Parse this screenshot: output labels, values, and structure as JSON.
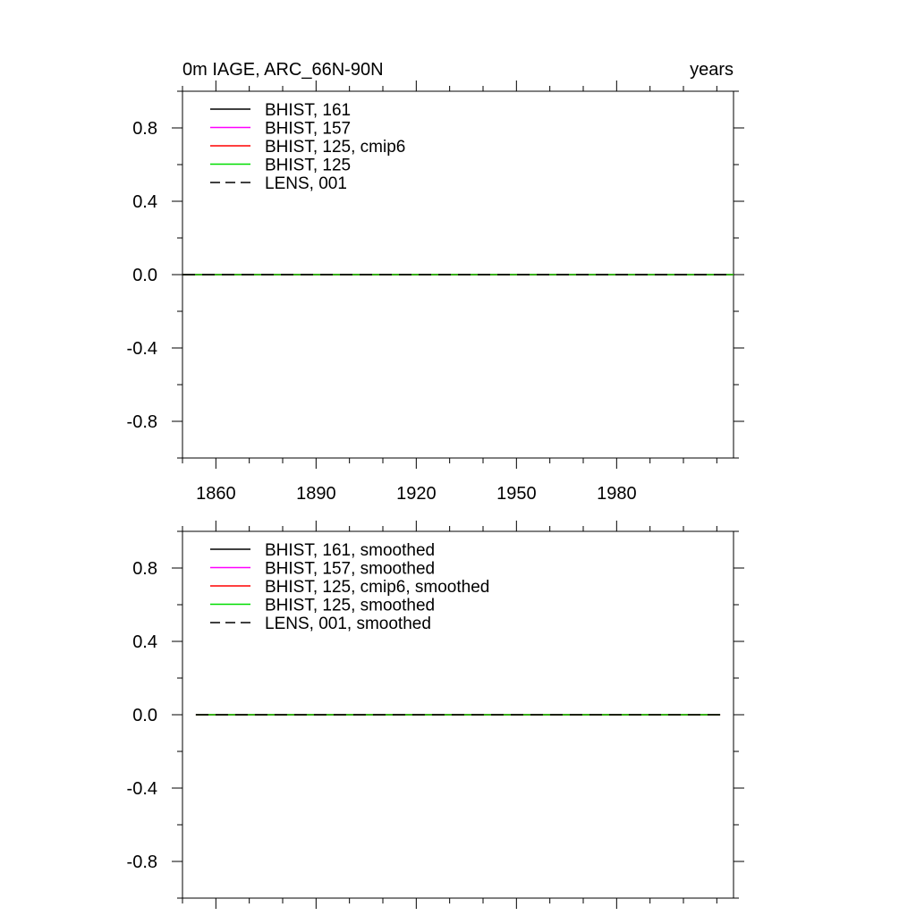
{
  "chart_data": [
    {
      "type": "line",
      "title_left": "0m IAGE, ARC_66N-90N",
      "title_right": "years",
      "xlim": [
        1850,
        2015
      ],
      "ylim": [
        -1.0,
        1.0
      ],
      "x_ticks": [
        1860,
        1890,
        1920,
        1950,
        1980
      ],
      "x_tick_labels": [
        "1860",
        "1890",
        "1920",
        "1950",
        "1980"
      ],
      "y_ticks": [
        -0.8,
        -0.4,
        0.0,
        0.4,
        0.8
      ],
      "y_tick_labels": [
        "-0.8",
        "-0.4",
        "0.0",
        "0.4",
        "0.8"
      ],
      "legend_position": "top-left",
      "x_range_data": [
        1850,
        2015
      ],
      "series": [
        {
          "name": "BHIST, 161",
          "color": "#000000",
          "dash": "solid",
          "x": [
            1850,
            2015
          ],
          "values": [
            0,
            0
          ]
        },
        {
          "name": "BHIST, 157",
          "color": "#ff00ff",
          "dash": "solid",
          "x": [
            1850,
            2015
          ],
          "values": [
            0,
            0
          ]
        },
        {
          "name": "BHIST, 125, cmip6",
          "color": "#ff0000",
          "dash": "solid",
          "x": [
            1850,
            2015
          ],
          "values": [
            0,
            0
          ]
        },
        {
          "name": "BHIST, 125",
          "color": "#00dd00",
          "dash": "solid",
          "x": [
            1850,
            2015
          ],
          "values": [
            0,
            0
          ]
        },
        {
          "name": "LENS, 001",
          "color": "#000000",
          "dash": "dashed",
          "x": [
            1850,
            2015
          ],
          "values": [
            0,
            0
          ]
        }
      ]
    },
    {
      "type": "line",
      "title_left": "",
      "title_right": "",
      "xlim": [
        1850,
        2015
      ],
      "ylim": [
        -1.0,
        1.0
      ],
      "x_ticks": [
        1860,
        1890,
        1920,
        1950,
        1980
      ],
      "x_tick_labels": [],
      "y_ticks": [
        -0.8,
        -0.4,
        0.0,
        0.4,
        0.8
      ],
      "y_tick_labels": [
        "-0.8",
        "-0.4",
        "0.0",
        "0.4",
        "0.8"
      ],
      "legend_position": "top-left",
      "series": [
        {
          "name": "BHIST, 161, smoothed",
          "color": "#000000",
          "dash": "solid",
          "x": [
            1854,
            2011
          ],
          "values": [
            0,
            0
          ]
        },
        {
          "name": "BHIST, 157, smoothed",
          "color": "#ff00ff",
          "dash": "solid",
          "x": [
            1854,
            2011
          ],
          "values": [
            0,
            0
          ]
        },
        {
          "name": "BHIST, 125, cmip6, smoothed",
          "color": "#ff0000",
          "dash": "solid",
          "x": [
            1854,
            2011
          ],
          "values": [
            0,
            0
          ]
        },
        {
          "name": "BHIST, 125, smoothed",
          "color": "#00dd00",
          "dash": "solid",
          "x": [
            1854,
            2011
          ],
          "values": [
            0,
            0
          ]
        },
        {
          "name": "LENS, 001, smoothed",
          "color": "#000000",
          "dash": "dashed",
          "x": [
            1854,
            2011
          ],
          "values": [
            0,
            0
          ]
        }
      ]
    }
  ]
}
